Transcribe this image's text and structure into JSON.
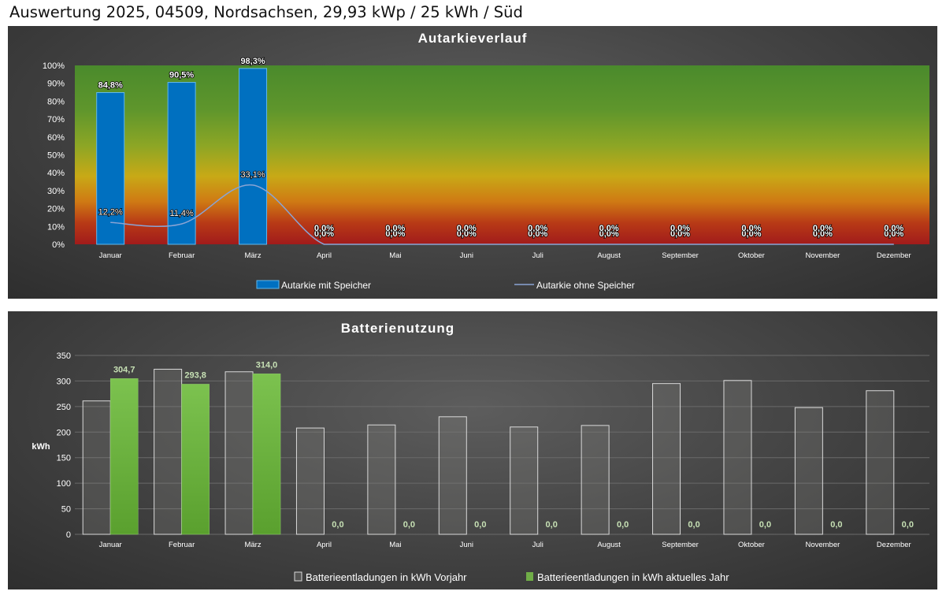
{
  "page": {
    "title": "Auswertung 2025, 04509, Nordsachsen, 29,93 kWp / 25 kWh / Süd"
  },
  "chart_data": [
    {
      "type": "bar",
      "title": "Autarkieverlauf",
      "categories": [
        "Januar",
        "Februar",
        "März",
        "April",
        "Mai",
        "Juni",
        "Juli",
        "August",
        "September",
        "Oktober",
        "November",
        "Dezember"
      ],
      "ylim": [
        0,
        100
      ],
      "yticks": [
        "0%",
        "10%",
        "20%",
        "30%",
        "40%",
        "50%",
        "60%",
        "70%",
        "80%",
        "90%",
        "100%"
      ],
      "background": "gradient red (0%) to yellow (~35%) to green (100%)",
      "series": [
        {
          "name": "Autarkie mit Speicher",
          "kind": "bar",
          "color": "#0070c0",
          "values": [
            84.8,
            90.5,
            98.3,
            0,
            0,
            0,
            0,
            0,
            0,
            0,
            0,
            0
          ],
          "labels": [
            "84,8%",
            "90,5%",
            "98,3%",
            "0,0%",
            "0,0%",
            "0,0%",
            "0,0%",
            "0,0%",
            "0,0%",
            "0,0%",
            "0,0%",
            "0,0%"
          ]
        },
        {
          "name": "Autarkie ohne Speicher",
          "kind": "line",
          "color": "#8aa4d4",
          "values": [
            12.2,
            11.4,
            33.1,
            0,
            0,
            0,
            0,
            0,
            0,
            0,
            0,
            0
          ],
          "labels": [
            "12,2%",
            "11,4%",
            "33,1%",
            "0,0%",
            "0,0%",
            "0,0%",
            "0,0%",
            "0,0%",
            "0,0%",
            "0,0%",
            "0,0%",
            "0,0%"
          ]
        }
      ],
      "legend": "bottom"
    },
    {
      "type": "bar",
      "title": "Batterienutzung",
      "ylabel": "kWh",
      "categories": [
        "Januar",
        "Februar",
        "März",
        "April",
        "Mai",
        "Juni",
        "Juli",
        "August",
        "September",
        "Oktober",
        "November",
        "Dezember"
      ],
      "ylim": [
        0,
        350
      ],
      "yticks": [
        "0",
        "50",
        "100",
        "150",
        "200",
        "250",
        "300",
        "350"
      ],
      "grid": true,
      "series": [
        {
          "name": "Batterieentladungen in kWh Vorjahr",
          "color": "#595959",
          "values": [
            261,
            323,
            318,
            208,
            214,
            230,
            210,
            213,
            295,
            301,
            248,
            281
          ]
        },
        {
          "name": "Batterieentladungen in kWh aktuelles Jahr",
          "color": "#70ad47",
          "values": [
            304.7,
            293.8,
            314.0,
            0,
            0,
            0,
            0,
            0,
            0,
            0,
            0,
            0
          ],
          "labels": [
            "304,7",
            "293,8",
            "314,0",
            "0,0",
            "0,0",
            "0,0",
            "0,0",
            "0,0",
            "0,0",
            "0,0",
            "0,0",
            "0,0"
          ]
        }
      ],
      "legend": "bottom"
    }
  ]
}
